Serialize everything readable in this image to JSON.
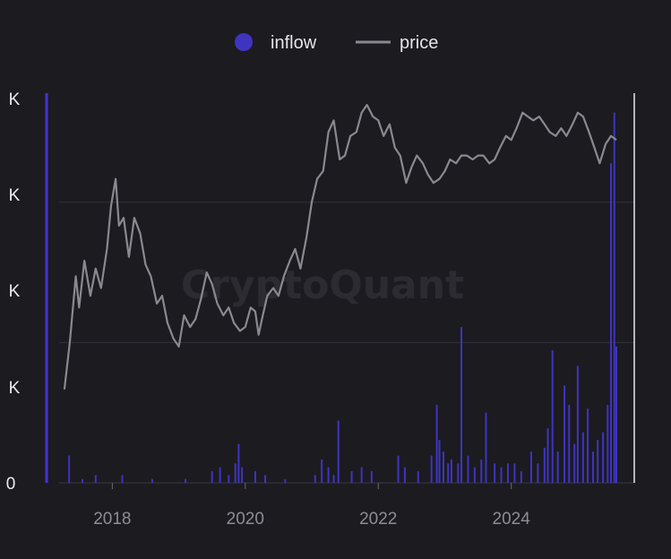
{
  "chart_data": {
    "type": "bar+line",
    "watermark": "CryptoQuant",
    "legend": {
      "placement": "top-center",
      "entries": [
        {
          "label": "inflow",
          "marker": "circle",
          "color": "#3f34c0"
        },
        {
          "label": "price",
          "marker": "line",
          "color": "#8a8990"
        }
      ]
    },
    "x_axis": {
      "range": [
        2017.2,
        2025.85
      ],
      "ticks": [
        {
          "value": 2018,
          "label": "2018"
        },
        {
          "value": 2020,
          "label": "2020"
        },
        {
          "value": 2022,
          "label": "2022"
        },
        {
          "value": 2024,
          "label": "2024"
        }
      ]
    },
    "y_axis_left": {
      "tick_labels": [
        "0",
        "K",
        "K",
        "K",
        "K"
      ],
      "grid": true
    },
    "series": [
      {
        "name": "price",
        "type": "line",
        "color": "#8a8990",
        "points": [
          [
            2017.28,
            0.24
          ],
          [
            2017.36,
            0.36
          ],
          [
            2017.45,
            0.53
          ],
          [
            2017.5,
            0.45
          ],
          [
            2017.58,
            0.57
          ],
          [
            2017.67,
            0.48
          ],
          [
            2017.75,
            0.55
          ],
          [
            2017.83,
            0.5
          ],
          [
            2017.92,
            0.6
          ],
          [
            2017.98,
            0.71
          ],
          [
            2018.05,
            0.78
          ],
          [
            2018.1,
            0.66
          ],
          [
            2018.17,
            0.68
          ],
          [
            2018.25,
            0.58
          ],
          [
            2018.33,
            0.68
          ],
          [
            2018.42,
            0.64
          ],
          [
            2018.5,
            0.56
          ],
          [
            2018.58,
            0.53
          ],
          [
            2018.67,
            0.46
          ],
          [
            2018.75,
            0.48
          ],
          [
            2018.83,
            0.41
          ],
          [
            2018.92,
            0.37
          ],
          [
            2019.0,
            0.35
          ],
          [
            2019.08,
            0.43
          ],
          [
            2019.17,
            0.4
          ],
          [
            2019.25,
            0.42
          ],
          [
            2019.33,
            0.47
          ],
          [
            2019.42,
            0.54
          ],
          [
            2019.5,
            0.51
          ],
          [
            2019.58,
            0.46
          ],
          [
            2019.67,
            0.43
          ],
          [
            2019.75,
            0.45
          ],
          [
            2019.83,
            0.41
          ],
          [
            2019.92,
            0.39
          ],
          [
            2020.0,
            0.4
          ],
          [
            2020.08,
            0.45
          ],
          [
            2020.15,
            0.44
          ],
          [
            2020.2,
            0.38
          ],
          [
            2020.25,
            0.42
          ],
          [
            2020.33,
            0.48
          ],
          [
            2020.42,
            0.5
          ],
          [
            2020.5,
            0.48
          ],
          [
            2020.58,
            0.53
          ],
          [
            2020.67,
            0.57
          ],
          [
            2020.75,
            0.6
          ],
          [
            2020.83,
            0.55
          ],
          [
            2020.92,
            0.63
          ],
          [
            2021.0,
            0.72
          ],
          [
            2021.08,
            0.78
          ],
          [
            2021.17,
            0.8
          ],
          [
            2021.25,
            0.9
          ],
          [
            2021.33,
            0.93
          ],
          [
            2021.42,
            0.83
          ],
          [
            2021.5,
            0.84
          ],
          [
            2021.58,
            0.89
          ],
          [
            2021.67,
            0.9
          ],
          [
            2021.75,
            0.95
          ],
          [
            2021.83,
            0.97
          ],
          [
            2021.92,
            0.94
          ],
          [
            2022.0,
            0.93
          ],
          [
            2022.08,
            0.89
          ],
          [
            2022.17,
            0.92
          ],
          [
            2022.25,
            0.86
          ],
          [
            2022.33,
            0.84
          ],
          [
            2022.42,
            0.77
          ],
          [
            2022.5,
            0.81
          ],
          [
            2022.58,
            0.84
          ],
          [
            2022.67,
            0.82
          ],
          [
            2022.75,
            0.79
          ],
          [
            2022.83,
            0.77
          ],
          [
            2022.92,
            0.78
          ],
          [
            2023.0,
            0.8
          ],
          [
            2023.08,
            0.83
          ],
          [
            2023.17,
            0.82
          ],
          [
            2023.25,
            0.84
          ],
          [
            2023.33,
            0.84
          ],
          [
            2023.42,
            0.83
          ],
          [
            2023.5,
            0.84
          ],
          [
            2023.58,
            0.84
          ],
          [
            2023.67,
            0.82
          ],
          [
            2023.75,
            0.83
          ],
          [
            2023.83,
            0.86
          ],
          [
            2023.92,
            0.89
          ],
          [
            2024.0,
            0.88
          ],
          [
            2024.08,
            0.91
          ],
          [
            2024.17,
            0.95
          ],
          [
            2024.25,
            0.94
          ],
          [
            2024.33,
            0.93
          ],
          [
            2024.42,
            0.94
          ],
          [
            2024.5,
            0.92
          ],
          [
            2024.58,
            0.9
          ],
          [
            2024.67,
            0.89
          ],
          [
            2024.75,
            0.91
          ],
          [
            2024.83,
            0.89
          ],
          [
            2024.92,
            0.92
          ],
          [
            2025.0,
            0.95
          ],
          [
            2025.08,
            0.94
          ],
          [
            2025.17,
            0.9
          ],
          [
            2025.25,
            0.86
          ],
          [
            2025.33,
            0.82
          ],
          [
            2025.42,
            0.87
          ],
          [
            2025.5,
            0.89
          ],
          [
            2025.58,
            0.88
          ]
        ]
      },
      {
        "name": "inflow",
        "type": "bar",
        "color": "#3f34c0",
        "points": [
          [
            2017.35,
            0.07
          ],
          [
            2017.55,
            0.01
          ],
          [
            2017.75,
            0.02
          ],
          [
            2018.15,
            0.02
          ],
          [
            2018.6,
            0.01
          ],
          [
            2019.1,
            0.01
          ],
          [
            2019.5,
            0.03
          ],
          [
            2019.62,
            0.04
          ],
          [
            2019.75,
            0.02
          ],
          [
            2019.85,
            0.05
          ],
          [
            2019.9,
            0.1
          ],
          [
            2019.95,
            0.04
          ],
          [
            2020.15,
            0.03
          ],
          [
            2020.3,
            0.02
          ],
          [
            2020.6,
            0.01
          ],
          [
            2021.05,
            0.02
          ],
          [
            2021.15,
            0.06
          ],
          [
            2021.25,
            0.04
          ],
          [
            2021.33,
            0.02
          ],
          [
            2021.4,
            0.16
          ],
          [
            2021.6,
            0.03
          ],
          [
            2021.75,
            0.04
          ],
          [
            2021.9,
            0.03
          ],
          [
            2022.3,
            0.07
          ],
          [
            2022.4,
            0.04
          ],
          [
            2022.6,
            0.03
          ],
          [
            2022.8,
            0.07
          ],
          [
            2022.88,
            0.2
          ],
          [
            2022.92,
            0.11
          ],
          [
            2022.98,
            0.08
          ],
          [
            2023.05,
            0.05
          ],
          [
            2023.1,
            0.06
          ],
          [
            2023.2,
            0.05
          ],
          [
            2023.25,
            0.4
          ],
          [
            2023.35,
            0.07
          ],
          [
            2023.45,
            0.04
          ],
          [
            2023.55,
            0.06
          ],
          [
            2023.62,
            0.18
          ],
          [
            2023.75,
            0.05
          ],
          [
            2023.85,
            0.04
          ],
          [
            2023.95,
            0.05
          ],
          [
            2024.05,
            0.05
          ],
          [
            2024.15,
            0.03
          ],
          [
            2024.3,
            0.08
          ],
          [
            2024.4,
            0.05
          ],
          [
            2024.5,
            0.09
          ],
          [
            2024.55,
            0.14
          ],
          [
            2024.62,
            0.34
          ],
          [
            2024.7,
            0.08
          ],
          [
            2024.8,
            0.25
          ],
          [
            2024.87,
            0.2
          ],
          [
            2024.95,
            0.1
          ],
          [
            2025.0,
            0.3
          ],
          [
            2025.08,
            0.13
          ],
          [
            2025.15,
            0.19
          ],
          [
            2025.23,
            0.08
          ],
          [
            2025.3,
            0.11
          ],
          [
            2025.38,
            0.13
          ],
          [
            2025.45,
            0.2
          ],
          [
            2025.5,
            0.82
          ],
          [
            2025.55,
            0.95
          ],
          [
            2025.58,
            0.35
          ]
        ]
      }
    ]
  }
}
